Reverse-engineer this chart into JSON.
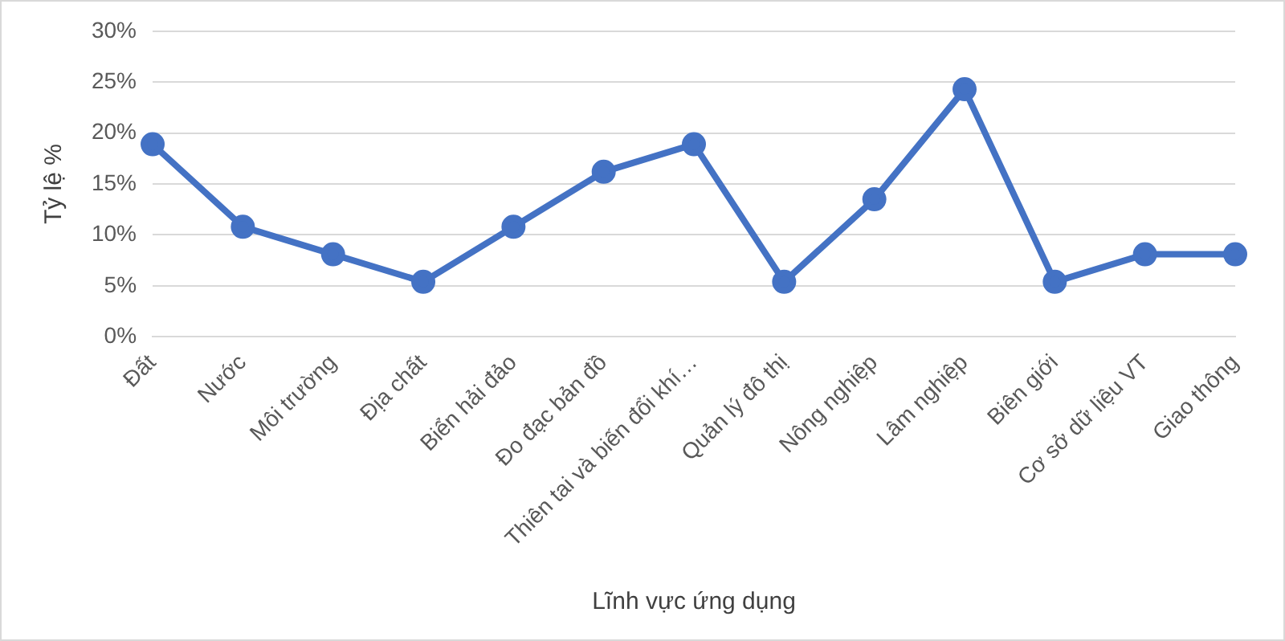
{
  "chart_data": {
    "type": "line",
    "xlabel": "Lĩnh vực ứng dụng",
    "ylabel": "Tỷ lệ %",
    "categories": [
      "Đất",
      "Nước",
      "Môi trường",
      "Địa chất",
      "Biển hải đảo",
      "Đo đạc bản đồ",
      "Thiên tai và biến đổi khí…",
      "Quản lý đô thị",
      "Nông nghiệp",
      "Lâm nghiệp",
      "Biên giới",
      "Cơ sở dữ liệu VT",
      "Giao thông"
    ],
    "series": [
      {
        "color": "#4472c4",
        "values": [
          18.9,
          10.8,
          8.1,
          5.4,
          10.8,
          16.2,
          18.9,
          5.4,
          13.5,
          24.3,
          5.4,
          8.1,
          8.1
        ]
      }
    ],
    "ylim": [
      0,
      30
    ],
    "yticks": [
      {
        "value": 0,
        "label": "0%"
      },
      {
        "value": 5,
        "label": "5%"
      },
      {
        "value": 10,
        "label": "10%"
      },
      {
        "value": 15,
        "label": "15%"
      },
      {
        "value": 20,
        "label": "20%"
      },
      {
        "value": 25,
        "label": "25%"
      },
      {
        "value": 30,
        "label": "30%"
      }
    ],
    "grid": "y",
    "legend": false,
    "marker": "circle",
    "line_style": "solid"
  }
}
